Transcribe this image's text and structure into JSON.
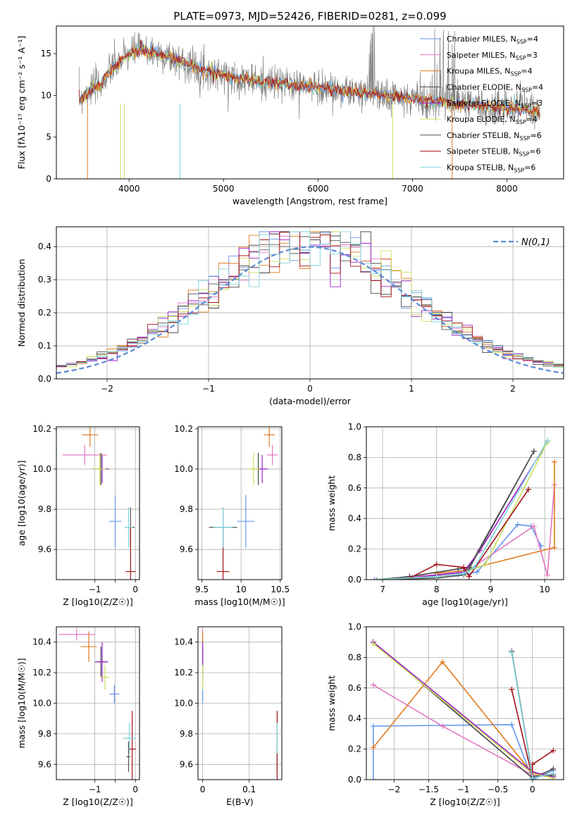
{
  "title": "PLATE=0973, MJD=52426, FIBERID=0281, z=0.099",
  "colors": [
    "#6495ed",
    "#e377c2",
    "#e07b1f",
    "#444444",
    "#9d1fc8",
    "#c9e05a",
    "#555555",
    "#a3131a",
    "#7fd4dc"
  ],
  "legend_names": [
    {
      "base": "Chrabier MILES, N",
      "sub": "SSP",
      "n": "4"
    },
    {
      "base": "Salpeter MILES, N",
      "sub": "SSP",
      "n": "3"
    },
    {
      "base": "Kroupa MILES, N",
      "sub": "SSP",
      "n": "4"
    },
    {
      "base": "Chabrier ELODIE, N",
      "sub": "SSP",
      "n": "4"
    },
    {
      "base": "Salpeter ELODIE, N",
      "sub": "SSP",
      "n": "3"
    },
    {
      "base": "Kroupa ELODIE, N",
      "sub": "SSP",
      "n": "4"
    },
    {
      "base": "Chabrier STELIB, N",
      "sub": "SSP",
      "n": "6"
    },
    {
      "base": "Salpeter STELIB, N",
      "sub": "SSP",
      "n": "6"
    },
    {
      "base": "Kroupa STELIB, N",
      "sub": "SSP",
      "n": "6"
    }
  ],
  "chart_data": [
    {
      "id": "spectrum",
      "type": "line",
      "xlabel": "wavelength [Angstrom, rest frame]",
      "ylabel": "Flux [fλ10⁻¹⁷ erg cm⁻² s⁻¹ A⁻¹]",
      "xlim": [
        3230,
        8600
      ],
      "ylim": [
        0,
        18.3
      ],
      "xticks": [
        4000,
        5000,
        6000,
        7000,
        8000
      ],
      "yticks": [
        0,
        5,
        10,
        15
      ],
      "continuum": [
        [
          3470,
          9.5
        ],
        [
          3600,
          10.8
        ],
        [
          3700,
          11.3
        ],
        [
          3800,
          13
        ],
        [
          3900,
          14
        ],
        [
          4000,
          15
        ],
        [
          4100,
          15.5
        ],
        [
          4300,
          15
        ],
        [
          4500,
          14.3
        ],
        [
          4800,
          13
        ],
        [
          5000,
          12.4
        ],
        [
          5400,
          11.6
        ],
        [
          6000,
          11
        ],
        [
          6500,
          10.2
        ],
        [
          7000,
          9.6
        ],
        [
          7500,
          9
        ],
        [
          8000,
          8.5
        ],
        [
          8350,
          8.1
        ]
      ],
      "legend": "top-right"
    },
    {
      "id": "residuals",
      "type": "step",
      "xlabel": "(data-model)/error",
      "ylabel": "Normed distribution",
      "xlim": [
        -2.5,
        2.5
      ],
      "ylim": [
        0,
        0.46
      ],
      "xticks": [
        -2,
        -1,
        0,
        1,
        2
      ],
      "yticks": [
        0,
        0.1,
        0.2,
        0.3,
        0.4
      ],
      "gaussian_label": "N(0,1)",
      "legend": "top-right"
    },
    {
      "id": "z_age",
      "type": "errorbar",
      "xlabel": "Z [log10(Z/Z☉)]",
      "ylabel": "age [log10(age/yr)]",
      "xlim": [
        -1.95,
        0.1
      ],
      "ylim": [
        9.45,
        10.21
      ],
      "xticks": [
        -1,
        -0.5,
        0
      ],
      "xticklabels": [
        "−1",
        "",
        "0"
      ],
      "yticks": [
        9.6,
        9.8,
        10.0,
        10.2
      ],
      "points": [
        {
          "x": -0.5,
          "y": 9.74,
          "xe": 0.15,
          "ye": 0.13,
          "c": 0
        },
        {
          "x": -1.25,
          "y": 10.07,
          "xe": 0.55,
          "ye": 0.05,
          "c": 1
        },
        {
          "x": -1.12,
          "y": 10.17,
          "xe": 0.2,
          "ye": 0.06,
          "c": 2
        },
        {
          "x": -0.85,
          "y": 10.0,
          "xe": 0.2,
          "ye": 0.08,
          "c": 3
        },
        {
          "x": -0.82,
          "y": 10.0,
          "xe": 0.15,
          "ye": 0.07,
          "c": 4
        },
        {
          "x": -0.88,
          "y": 10.0,
          "xe": 0.15,
          "ye": 0.08,
          "c": 5
        },
        {
          "x": -0.12,
          "y": 9.71,
          "xe": 0.1,
          "ye": 0.1,
          "c": 6
        },
        {
          "x": -0.12,
          "y": 9.49,
          "xe": 0.12,
          "ye": 0.22,
          "c": 7
        },
        {
          "x": -0.17,
          "y": 9.71,
          "xe": 0.1,
          "ye": 0.1,
          "c": 8
        }
      ]
    },
    {
      "id": "mass_age",
      "type": "errorbar",
      "xlabel": "mass [log10(M/M☉)]",
      "ylabel": "",
      "xlim": [
        9.45,
        10.52
      ],
      "ylim": [
        9.45,
        10.21
      ],
      "xticks": [
        9.5,
        10.0,
        10.5
      ],
      "yticks": [
        9.6,
        9.8,
        10.0,
        10.2
      ],
      "points": [
        {
          "x": 10.06,
          "y": 9.74,
          "xe": 0.11,
          "ye": 0.13,
          "c": 0
        },
        {
          "x": 10.4,
          "y": 10.07,
          "xe": 0.07,
          "ye": 0.05,
          "c": 1
        },
        {
          "x": 10.36,
          "y": 10.17,
          "xe": 0.07,
          "ye": 0.06,
          "c": 2
        },
        {
          "x": 10.22,
          "y": 10.0,
          "xe": 0.1,
          "ye": 0.08,
          "c": 3
        },
        {
          "x": 10.27,
          "y": 10.0,
          "xe": 0.07,
          "ye": 0.07,
          "c": 4
        },
        {
          "x": 10.16,
          "y": 10.0,
          "xe": 0.07,
          "ye": 0.08,
          "c": 5
        },
        {
          "x": 9.77,
          "y": 9.71,
          "xe": 0.18,
          "ye": 0.1,
          "c": 6
        },
        {
          "x": 9.77,
          "y": 9.49,
          "xe": 0.08,
          "ye": 0.22,
          "c": 7
        },
        {
          "x": 9.77,
          "y": 9.71,
          "xe": 0.12,
          "ye": 0.1,
          "c": 8
        }
      ]
    },
    {
      "id": "age_weight",
      "type": "line",
      "xlabel": "age [log10(age/yr)]",
      "ylabel": "mass weight",
      "xlim": [
        6.7,
        10.35
      ],
      "ylim": [
        0,
        1
      ],
      "xticks": [
        7,
        8,
        9,
        10
      ],
      "yticks": [
        0,
        0.2,
        0.4,
        0.6,
        0.8,
        1.0
      ],
      "series": [
        {
          "c": 0,
          "x": [
            6.85,
            8.4,
            8.75,
            9.5,
            9.75,
            9.93
          ],
          "y": [
            0.0,
            0.03,
            0.05,
            0.36,
            0.35,
            0.22
          ]
        },
        {
          "c": 1,
          "x": [
            7.5,
            8.5,
            9.8,
            10.05,
            10.18
          ],
          "y": [
            0.02,
            0.04,
            0.35,
            0.03,
            0.62
          ]
        },
        {
          "c": 2,
          "x": [
            8.0,
            8.5,
            10.18,
            10.18
          ],
          "y": [
            0.04,
            0.06,
            0.21,
            0.77
          ]
        },
        {
          "c": 3,
          "x": [
            6.9,
            7.5,
            8.4,
            8.6,
            9.8
          ],
          "y": [
            0.0,
            0.02,
            0.07,
            0.08,
            0.84
          ]
        },
        {
          "c": 4,
          "x": [
            7.5,
            8.5,
            8.8,
            10.05
          ],
          "y": [
            0.01,
            0.05,
            0.19,
            0.9
          ]
        },
        {
          "c": 5,
          "x": [
            6.9,
            8.0,
            8.5,
            8.9,
            10.05
          ],
          "y": [
            0.0,
            0.02,
            0.04,
            0.1,
            0.9
          ]
        },
        {
          "c": 6,
          "x": [
            6.9,
            8.0,
            8.5,
            8.6,
            9.8
          ],
          "y": [
            0.0,
            0.01,
            0.03,
            0.07,
            0.84
          ]
        },
        {
          "c": 7,
          "x": [
            7.5,
            8.0,
            8.5,
            8.6,
            9.7
          ],
          "y": [
            0.01,
            0.1,
            0.08,
            0.02,
            0.59
          ]
        },
        {
          "c": 8,
          "x": [
            6.9,
            8.0,
            8.5,
            8.7,
            10.05
          ],
          "y": [
            0.0,
            0.02,
            0.04,
            0.08,
            0.91
          ]
        }
      ]
    },
    {
      "id": "z_mass",
      "type": "errorbar",
      "xlabel": "Z [log10(Z/Z☉)]",
      "ylabel": "mass [log10(M/M☉)]",
      "xlim": [
        -1.95,
        0.1
      ],
      "ylim": [
        9.5,
        10.5
      ],
      "xticks": [
        -1,
        -0.5,
        0
      ],
      "xticklabels": [
        "−1",
        "",
        "0"
      ],
      "yticks": [
        9.6,
        9.8,
        10.0,
        10.2,
        10.4
      ],
      "points": [
        {
          "x": -0.52,
          "y": 10.06,
          "xe": 0.12,
          "ye": 0.06,
          "c": 0
        },
        {
          "x": -1.45,
          "y": 10.45,
          "xe": 0.45,
          "ye": 0.04,
          "c": 1
        },
        {
          "x": -1.15,
          "y": 10.37,
          "xe": 0.2,
          "ye": 0.1,
          "c": 2
        },
        {
          "x": -0.85,
          "y": 10.27,
          "xe": 0.15,
          "ye": 0.1,
          "c": 3
        },
        {
          "x": -0.82,
          "y": 10.27,
          "xe": 0.15,
          "ye": 0.13,
          "c": 4
        },
        {
          "x": -0.75,
          "y": 10.17,
          "xe": 0.1,
          "ye": 0.08,
          "c": 5
        },
        {
          "x": -0.17,
          "y": 9.65,
          "xe": 0.05,
          "ye": 0.1,
          "c": 6
        },
        {
          "x": -0.08,
          "y": 9.7,
          "xe": 0.1,
          "ye": 0.25,
          "c": 7
        },
        {
          "x": -0.15,
          "y": 9.77,
          "xe": 0.15,
          "ye": 0.1,
          "c": 8
        }
      ]
    },
    {
      "id": "ebv_mass",
      "type": "errorbar",
      "xlabel": "E(B-V)",
      "ylabel": "",
      "xlim": [
        -0.01,
        0.17
      ],
      "ylim": [
        9.5,
        10.5
      ],
      "xticks": [
        0.0,
        0.1
      ],
      "yticks": [
        9.6,
        9.8,
        10.0,
        10.2,
        10.4
      ],
      "points": [
        {
          "x": 0.0,
          "y": 10.06,
          "xe": 0.0,
          "ye": 0.06,
          "c": 0
        },
        {
          "x": 0.0,
          "y": 10.45,
          "xe": 0.0,
          "ye": 0.04,
          "c": 1
        },
        {
          "x": 0.0,
          "y": 10.37,
          "xe": 0.0,
          "ye": 0.1,
          "c": 2
        },
        {
          "x": 0.0,
          "y": 10.27,
          "xe": 0.0,
          "ye": 0.1,
          "c": 3
        },
        {
          "x": 0.0,
          "y": 10.27,
          "xe": 0.0,
          "ye": 0.13,
          "c": 4
        },
        {
          "x": 0.0,
          "y": 10.17,
          "xe": 0.0,
          "ye": 0.08,
          "c": 5
        },
        {
          "x": 0.16,
          "y": 9.65,
          "xe": 0.0,
          "ye": 0.1,
          "c": 6
        },
        {
          "x": 0.16,
          "y": 9.7,
          "xe": 0.0,
          "ye": 0.25,
          "c": 7
        },
        {
          "x": 0.16,
          "y": 9.77,
          "xe": 0.0,
          "ye": 0.1,
          "c": 8
        }
      ]
    },
    {
      "id": "z_weight",
      "type": "line",
      "xlabel": "Z [log10(Z/Z☉)]",
      "ylabel": "mass weight",
      "xlim": [
        -2.4,
        0.45
      ],
      "ylim": [
        0,
        1
      ],
      "xticks": [
        -2.0,
        -1.5,
        -1.0,
        -0.5,
        0.0
      ],
      "yticks": [
        0,
        0.2,
        0.4,
        0.6,
        0.8,
        1.0
      ],
      "series": [
        {
          "c": 0,
          "x": [
            -2.3,
            -2.3,
            -0.3,
            0.0,
            0.3
          ],
          "y": [
            0.0,
            0.35,
            0.36,
            0.0,
            0.06
          ]
        },
        {
          "c": 1,
          "x": [
            -2.3,
            -1.3,
            0.0,
            0.3
          ],
          "y": [
            0.62,
            0.35,
            0.03,
            0.02
          ]
        },
        {
          "c": 2,
          "x": [
            -2.3,
            -1.3,
            0.0,
            0.3
          ],
          "y": [
            0.21,
            0.77,
            0.04,
            0.03
          ]
        },
        {
          "c": 3,
          "x": [
            -2.3,
            0.0,
            0.3
          ],
          "y": [
            0.9,
            0.01,
            0.07
          ]
        },
        {
          "c": 4,
          "x": [
            -2.3,
            0.0,
            0.3
          ],
          "y": [
            0.9,
            0.05,
            0.02
          ]
        },
        {
          "c": 5,
          "x": [
            -2.3,
            0.0,
            0.3
          ],
          "y": [
            0.89,
            0.04,
            0.01
          ]
        },
        {
          "c": 6,
          "x": [
            -0.3,
            0.0,
            0.3
          ],
          "y": [
            0.84,
            0.02,
            0.03
          ]
        },
        {
          "c": 7,
          "x": [
            -0.3,
            0.0,
            0.0,
            0.3
          ],
          "y": [
            0.59,
            0.01,
            0.1,
            0.19
          ]
        },
        {
          "c": 8,
          "x": [
            -0.3,
            0.0,
            0.3
          ],
          "y": [
            0.83,
            0.01,
            0.04
          ]
        }
      ]
    }
  ]
}
